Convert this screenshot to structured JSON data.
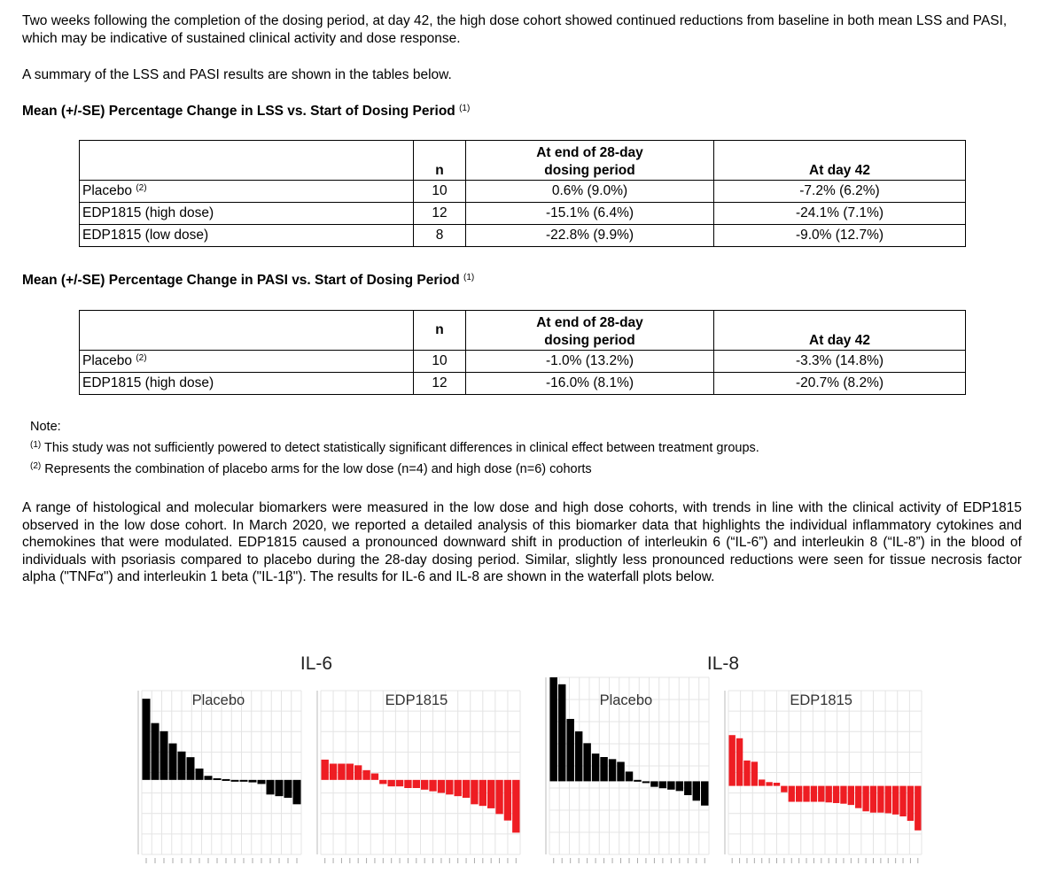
{
  "intro": "Two weeks following the completion of the dosing period, at day 42, the high dose cohort showed continued reductions from baseline in both mean LSS and PASI, which may be indicative of sustained clinical activity and dose response.",
  "summary": "A summary of the LSS and PASI results are shown in the tables below.",
  "lss": {
    "caption": "Mean (+/-SE) Percentage Change in LSS vs. Start of Dosing Period",
    "caption_sup": "(1)",
    "headers": {
      "n": "n",
      "end_line1": "At end of 28-day",
      "end_line2": "dosing period",
      "day42": "At day 42"
    },
    "rows": [
      {
        "group": "Placebo",
        "sup": "(2)",
        "n": "10",
        "end": "0.6% (9.0%)",
        "day42": "-7.2% (6.2%)"
      },
      {
        "group": "EDP1815 (high dose)",
        "sup": "",
        "n": "12",
        "end": "-15.1% (6.4%)",
        "day42": "-24.1% (7.1%)"
      },
      {
        "group": "EDP1815 (low dose)",
        "sup": "",
        "n": "8",
        "end": "-22.8% (9.9%)",
        "day42": "-9.0% (12.7%)"
      }
    ]
  },
  "pasi": {
    "caption": "Mean (+/-SE) Percentage Change in PASI vs. Start of Dosing Period",
    "caption_sup": "(1)",
    "headers": {
      "n": "n",
      "end_line1": "At end of 28-day",
      "end_line2": "dosing period",
      "day42": "At day 42"
    },
    "rows": [
      {
        "group": "Placebo",
        "sup": "(2)",
        "n": "10",
        "end": "-1.0% (13.2%)",
        "day42": "-3.3% (14.8%)"
      },
      {
        "group": "EDP1815 (high dose)",
        "sup": "",
        "n": "12",
        "end": "-16.0% (8.1%)",
        "day42": "-20.7% (8.2%)"
      }
    ]
  },
  "notes": {
    "label": "Note:",
    "n1_sup": "(1)",
    "n1": "This study was not sufficiently powered to detect statistically significant differences in clinical effect between treatment groups.",
    "n2_sup": "(2)",
    "n2": "Represents the combination of placebo arms for the low dose (n=4) and high dose (n=6) cohorts"
  },
  "biomarker_text": "A range of histological and molecular biomarkers were measured in the low dose and high dose cohorts, with trends in line with the clinical activity of EDP1815 observed in the low dose cohort. In March 2020, we reported a detailed analysis of this biomarker data that highlights the individual inflammatory cytokines and chemokines that were modulated. EDP1815 caused a pronounced downward shift in production of interleukin 6 (“IL-6”) and interleukin 8 (“IL-8”) in the blood of individuals with psoriasis compared to placebo during the 28-day dosing period. Similar, slightly less pronounced reductions were seen for tissue necrosis factor alpha (\"TNFα\") and interleukin 1 beta (\"IL-1β\"). The results for IL-6 and IL-8 are shown in the waterfall plots below.",
  "colors": {
    "placebo": "#000000",
    "edp": "#ee1d23",
    "grid": "#e4e4e4",
    "axis": "#bbbbbb"
  },
  "chart_data": [
    {
      "type": "bar",
      "group_title": "IL-6",
      "title": "Placebo",
      "ylim": [
        -70,
        110
      ],
      "values": [
        100,
        70,
        60,
        45,
        35,
        28,
        14,
        5,
        2,
        1,
        -1,
        -2,
        -3,
        -5,
        -18,
        -20,
        -22,
        -30
      ],
      "series_color": "placebo"
    },
    {
      "type": "bar",
      "group_title": "IL-6",
      "title": "EDP1815",
      "ylim": [
        -70,
        110
      ],
      "values": [
        25,
        20,
        20,
        20,
        18,
        12,
        8,
        -5,
        -8,
        -8,
        -10,
        -10,
        -12,
        -14,
        -16,
        -18,
        -20,
        -22,
        -30,
        -32,
        -35,
        -42,
        -50,
        -65
      ],
      "series_color": "edp"
    },
    {
      "type": "bar",
      "group_title": "IL-8",
      "title": "Placebo",
      "ylim": [
        -80,
        150
      ],
      "values": [
        150,
        140,
        90,
        72,
        55,
        40,
        35,
        32,
        28,
        14,
        2,
        0,
        -8,
        -10,
        -12,
        -14,
        -20,
        -28,
        -35
      ],
      "series_color": "placebo"
    },
    {
      "type": "bar",
      "group_title": "IL-8",
      "title": "EDP1815",
      "ylim": [
        -80,
        150
      ],
      "values": [
        80,
        75,
        40,
        38,
        10,
        6,
        5,
        -10,
        -25,
        -25,
        -25,
        -25,
        -25,
        -26,
        -27,
        -28,
        -30,
        -35,
        -40,
        -42,
        -42,
        -43,
        -45,
        -48,
        -55,
        -70
      ],
      "series_color": "edp"
    }
  ]
}
